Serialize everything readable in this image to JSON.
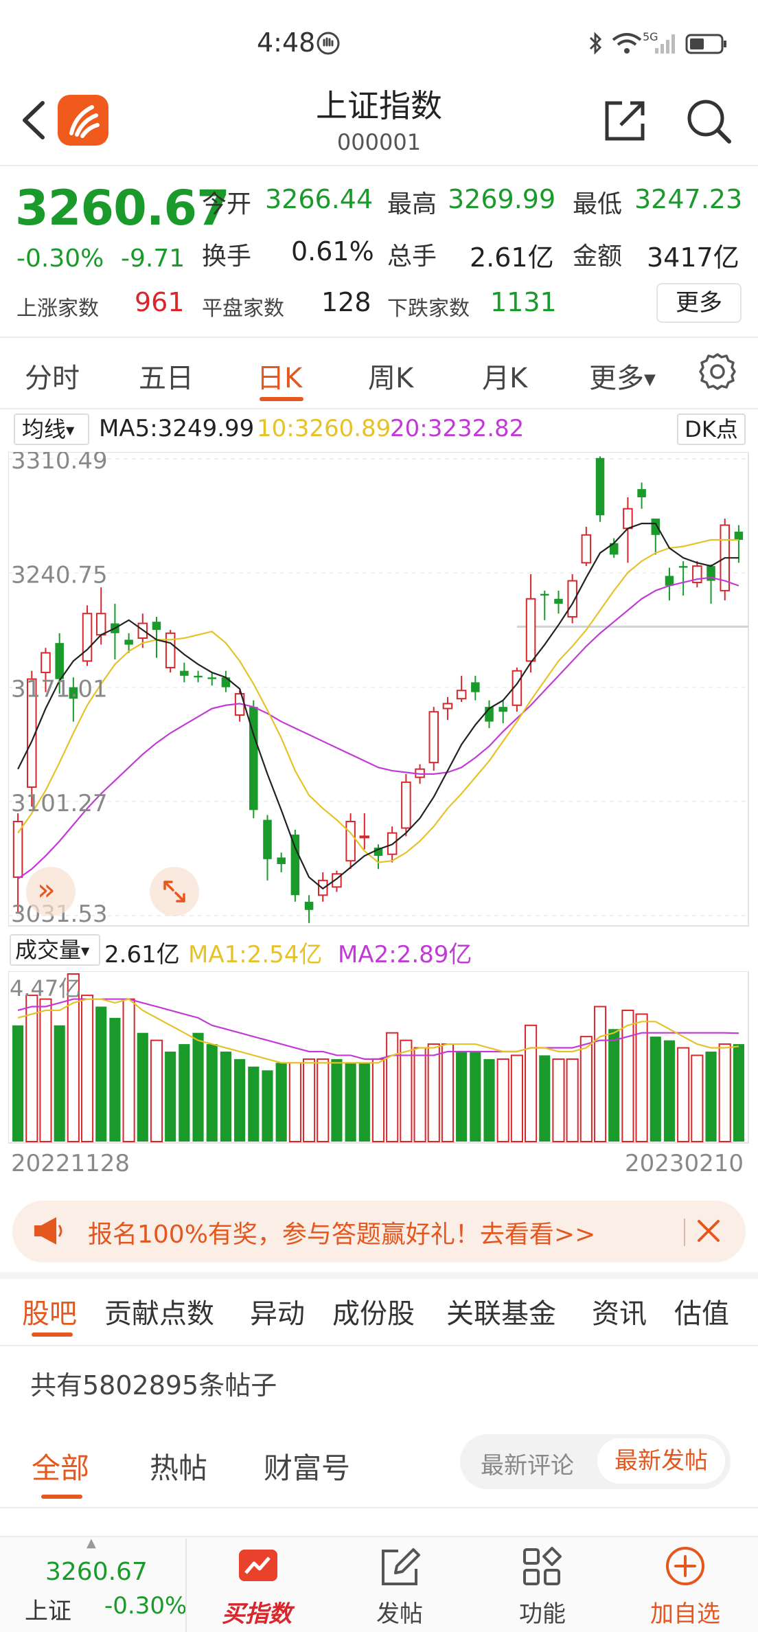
{
  "status_bar": {
    "time": "4:48",
    "network": "5G"
  },
  "header": {
    "title": "上证指数",
    "code": "000001"
  },
  "quote": {
    "price": "3260.67",
    "change_pct": "-0.30%",
    "change_val": "-9.71",
    "open_label": "今开",
    "open": "3266.44",
    "high_label": "最高",
    "high": "3269.99",
    "low_label": "最低",
    "low": "3247.23",
    "turnover_label": "换手",
    "turnover": "0.61%",
    "volume_label": "总手",
    "volume": "2.61亿",
    "amount_label": "金额",
    "amount": "3417亿",
    "up_label": "上涨家数",
    "up": "961",
    "flat_label": "平盘家数",
    "flat": "128",
    "down_label": "下跌家数",
    "down": "1131",
    "more": "更多"
  },
  "chart_tabs": {
    "intraday": "分时",
    "five_day": "五日",
    "day_k": "日K",
    "week_k": "周K",
    "month_k": "月K",
    "more": "更多"
  },
  "ma_row": {
    "select": "均线",
    "ma5": "MA5:3249.99",
    "ma10": "10:3260.89",
    "ma20": "20:3232.82",
    "dk": "DK点"
  },
  "vol_row": {
    "select": "成交量",
    "value": "2.61亿",
    "ma1": "MA1:2.54亿",
    "ma2": "MA2:2.89亿"
  },
  "colors": {
    "up": "#d8262b",
    "down": "#1a9a2a",
    "ma5": "#222222",
    "ma10": "#e6c229",
    "ma20": "#c23ad6",
    "accent": "#e4571e"
  },
  "chart_data": [
    {
      "type": "candlestick",
      "y_ticks": [
        "3310.49",
        "3240.75",
        "3171.01",
        "3101.27",
        "3031.53"
      ],
      "ylim": [
        3031.53,
        3310.49
      ],
      "x_start": "20221128",
      "x_end": "20230210",
      "candles": [
        {
          "o": 3055,
          "c": 3089,
          "h": 3094,
          "l": 3033
        },
        {
          "o": 3110,
          "c": 3176,
          "h": 3181,
          "l": 3098
        },
        {
          "o": 3180,
          "c": 3192,
          "h": 3195,
          "l": 3168
        },
        {
          "o": 3198,
          "c": 3176,
          "h": 3204,
          "l": 3167
        },
        {
          "o": 3171,
          "c": 3164,
          "h": 3177,
          "l": 3150
        },
        {
          "o": 3187,
          "c": 3216,
          "h": 3221,
          "l": 3184
        },
        {
          "o": 3203,
          "c": 3216,
          "h": 3232,
          "l": 3197
        },
        {
          "o": 3210,
          "c": 3204,
          "h": 3222,
          "l": 3188
        },
        {
          "o": 3200,
          "c": 3197,
          "h": 3204,
          "l": 3192
        },
        {
          "o": 3201,
          "c": 3210,
          "h": 3216,
          "l": 3195
        },
        {
          "o": 3211,
          "c": 3206,
          "h": 3214,
          "l": 3189
        },
        {
          "o": 3183,
          "c": 3204,
          "h": 3206,
          "l": 3180
        },
        {
          "o": 3181,
          "c": 3178,
          "h": 3186,
          "l": 3174
        },
        {
          "o": 3178,
          "c": 3177,
          "h": 3181,
          "l": 3174
        },
        {
          "o": 3177,
          "c": 3176,
          "h": 3180,
          "l": 3172
        },
        {
          "o": 3177,
          "c": 3171,
          "h": 3181,
          "l": 3168
        },
        {
          "o": 3154,
          "c": 3167,
          "h": 3169,
          "l": 3150
        },
        {
          "o": 3159,
          "c": 3096,
          "h": 3163,
          "l": 3091
        },
        {
          "o": 3090,
          "c": 3066,
          "h": 3093,
          "l": 3053
        },
        {
          "o": 3067,
          "c": 3063,
          "h": 3070,
          "l": 3058
        },
        {
          "o": 3081,
          "c": 3044,
          "h": 3084,
          "l": 3040
        },
        {
          "o": 3040,
          "c": 3035,
          "h": 3044,
          "l": 3027
        },
        {
          "o": 3044,
          "c": 3053,
          "h": 3058,
          "l": 3040
        },
        {
          "o": 3049,
          "c": 3057,
          "h": 3059,
          "l": 3046
        },
        {
          "o": 3065,
          "c": 3089,
          "h": 3094,
          "l": 3060
        },
        {
          "o": 3080,
          "c": 3080,
          "h": 3094,
          "l": 3072
        },
        {
          "o": 3073,
          "c": 3068,
          "h": 3075,
          "l": 3060
        },
        {
          "o": 3069,
          "c": 3082,
          "h": 3086,
          "l": 3064
        },
        {
          "o": 3085,
          "c": 3113,
          "h": 3118,
          "l": 3080
        },
        {
          "o": 3116,
          "c": 3121,
          "h": 3124,
          "l": 3112
        },
        {
          "o": 3125,
          "c": 3156,
          "h": 3159,
          "l": 3120
        },
        {
          "o": 3158,
          "c": 3161,
          "h": 3165,
          "l": 3151
        },
        {
          "o": 3164,
          "c": 3169,
          "h": 3178,
          "l": 3162
        },
        {
          "o": 3174,
          "c": 3168,
          "h": 3178,
          "l": 3163
        },
        {
          "o": 3159,
          "c": 3150,
          "h": 3163,
          "l": 3146
        },
        {
          "o": 3159,
          "c": 3156,
          "h": 3163,
          "l": 3149
        },
        {
          "o": 3160,
          "c": 3181,
          "h": 3183,
          "l": 3156
        },
        {
          "o": 3187,
          "c": 3225,
          "h": 3240,
          "l": 3180
        },
        {
          "o": 3228,
          "c": 3227,
          "h": 3230,
          "l": 3212
        },
        {
          "o": 3225,
          "c": 3222,
          "h": 3230,
          "l": 3216
        },
        {
          "o": 3214,
          "c": 3236,
          "h": 3240,
          "l": 3210
        },
        {
          "o": 3247,
          "c": 3264,
          "h": 3269,
          "l": 3245
        },
        {
          "o": 3311,
          "c": 3276,
          "h": 3312,
          "l": 3272
        },
        {
          "o": 3259,
          "c": 3252,
          "h": 3262,
          "l": 3250
        },
        {
          "o": 3268,
          "c": 3280,
          "h": 3287,
          "l": 3247
        },
        {
          "o": 3292,
          "c": 3287,
          "h": 3296,
          "l": 3280
        },
        {
          "o": 3274,
          "c": 3264,
          "h": 3274,
          "l": 3252
        },
        {
          "o": 3239,
          "c": 3233,
          "h": 3244,
          "l": 3224
        },
        {
          "o": 3245,
          "c": 3244,
          "h": 3248,
          "l": 3227
        },
        {
          "o": 3235,
          "c": 3245,
          "h": 3248,
          "l": 3232
        },
        {
          "o": 3245,
          "c": 3236,
          "h": 3246,
          "l": 3222
        },
        {
          "o": 3230,
          "c": 3270,
          "h": 3274,
          "l": 3224
        },
        {
          "o": 3266,
          "c": 3261,
          "h": 3270,
          "l": 3247
        }
      ],
      "reference_line": 3208,
      "ma5": [
        3121,
        3138,
        3158,
        3175,
        3187,
        3194,
        3203,
        3207,
        3212,
        3206,
        3200,
        3198,
        3191,
        3185,
        3180,
        3177,
        3170,
        3142,
        3118,
        3096,
        3073,
        3055,
        3048,
        3054,
        3061,
        3068,
        3072,
        3075,
        3082,
        3091,
        3104,
        3120,
        3136,
        3148,
        3158,
        3163,
        3173,
        3186,
        3197,
        3209,
        3222,
        3238,
        3253,
        3259,
        3268,
        3271,
        3271,
        3256,
        3250,
        3247,
        3245,
        3250,
        3250
      ],
      "ma10": [
        3082,
        3094,
        3108,
        3125,
        3143,
        3160,
        3173,
        3185,
        3193,
        3198,
        3200,
        3200,
        3201,
        3203,
        3205,
        3198,
        3187,
        3173,
        3157,
        3140,
        3120,
        3105,
        3097,
        3090,
        3082,
        3071,
        3064,
        3065,
        3070,
        3077,
        3086,
        3097,
        3106,
        3116,
        3126,
        3138,
        3150,
        3163,
        3175,
        3187,
        3196,
        3206,
        3218,
        3230,
        3241,
        3248,
        3253,
        3256,
        3257,
        3259,
        3261,
        3261,
        3261
      ],
      "ma20": [
        3054,
        3060,
        3068,
        3077,
        3087,
        3097,
        3106,
        3114,
        3122,
        3130,
        3137,
        3143,
        3148,
        3153,
        3158,
        3160,
        3161,
        3159,
        3155,
        3150,
        3146,
        3142,
        3138,
        3134,
        3130,
        3126,
        3122,
        3120,
        3119,
        3118,
        3118,
        3119,
        3122,
        3128,
        3135,
        3144,
        3152,
        3160,
        3169,
        3178,
        3187,
        3196,
        3204,
        3211,
        3218,
        3225,
        3230,
        3233,
        3235,
        3237,
        3238,
        3236,
        3233
      ]
    },
    {
      "type": "bar",
      "y_ticks": [
        "4.47亿"
      ],
      "ylim": [
        0,
        4.47
      ],
      "values": [
        3.1,
        3.9,
        3.8,
        3.1,
        4.5,
        3.9,
        3.6,
        3.3,
        3.8,
        2.9,
        2.7,
        2.4,
        2.6,
        2.9,
        2.6,
        2.4,
        2.2,
        2.0,
        1.9,
        2.1,
        2.1,
        2.2,
        2.2,
        2.2,
        2.1,
        2.1,
        2.2,
        2.9,
        2.7,
        2.5,
        2.6,
        2.6,
        2.4,
        2.4,
        2.2,
        2.2,
        2.3,
        3.1,
        2.3,
        2.2,
        2.2,
        2.8,
        3.6,
        3.0,
        3.5,
        3.4,
        2.8,
        2.7,
        2.5,
        2.3,
        2.4,
        2.6,
        2.6
      ],
      "up_flags": [
        0,
        1,
        1,
        0,
        1,
        1,
        0,
        0,
        1,
        0,
        1,
        0,
        0,
        0,
        0,
        0,
        0,
        0,
        0,
        0,
        1,
        1,
        1,
        0,
        0,
        0,
        1,
        1,
        1,
        1,
        1,
        1,
        0,
        0,
        0,
        1,
        1,
        1,
        0,
        1,
        1,
        1,
        1,
        0,
        1,
        1,
        0,
        0,
        1,
        1,
        0,
        1,
        0
      ],
      "ma1": [
        3.3,
        3.4,
        3.5,
        3.5,
        3.7,
        3.8,
        3.8,
        3.7,
        3.8,
        3.5,
        3.3,
        3.1,
        2.9,
        2.7,
        2.6,
        2.5,
        2.4,
        2.3,
        2.2,
        2.1,
        2.1,
        2.1,
        2.1,
        2.1,
        2.1,
        2.1,
        2.1,
        2.3,
        2.4,
        2.5,
        2.5,
        2.6,
        2.6,
        2.6,
        2.5,
        2.4,
        2.4,
        2.5,
        2.5,
        2.4,
        2.4,
        2.5,
        2.8,
        2.9,
        3.1,
        3.2,
        3.2,
        3.0,
        2.8,
        2.6,
        2.5,
        2.5,
        2.54
      ],
      "ma2": [
        3.5,
        3.6,
        3.6,
        3.7,
        3.8,
        3.8,
        3.8,
        3.8,
        3.8,
        3.7,
        3.6,
        3.5,
        3.4,
        3.3,
        3.1,
        3.0,
        2.9,
        2.8,
        2.7,
        2.6,
        2.5,
        2.4,
        2.4,
        2.3,
        2.3,
        2.2,
        2.2,
        2.3,
        2.3,
        2.3,
        2.3,
        2.4,
        2.4,
        2.4,
        2.4,
        2.4,
        2.4,
        2.5,
        2.5,
        2.5,
        2.5,
        2.6,
        2.7,
        2.7,
        2.8,
        2.9,
        2.9,
        2.9,
        2.9,
        2.9,
        2.9,
        2.9,
        2.89
      ]
    }
  ],
  "chart_controls": {
    "expand_left": "»"
  },
  "promo": {
    "text": "报名100%有奖，参与答题赢好礼！去看看>>"
  },
  "sub_tabs": {
    "guba": "股吧",
    "contribution": "贡献点数",
    "movement": "异动",
    "components": "成份股",
    "funds": "关联基金",
    "news": "资讯",
    "valuation": "估值"
  },
  "post_count": "共有5802895条帖子",
  "filters": {
    "all": "全部",
    "hot": "热帖",
    "fortune": "财富号"
  },
  "sort": {
    "latest_comment": "最新评论",
    "latest_post": "最新发帖"
  },
  "bottom_bar": {
    "price": "3260.67",
    "name": "上证",
    "change": "-0.30%",
    "buy": "买指数",
    "post": "发帖",
    "functions": "功能",
    "add": "加自选"
  }
}
